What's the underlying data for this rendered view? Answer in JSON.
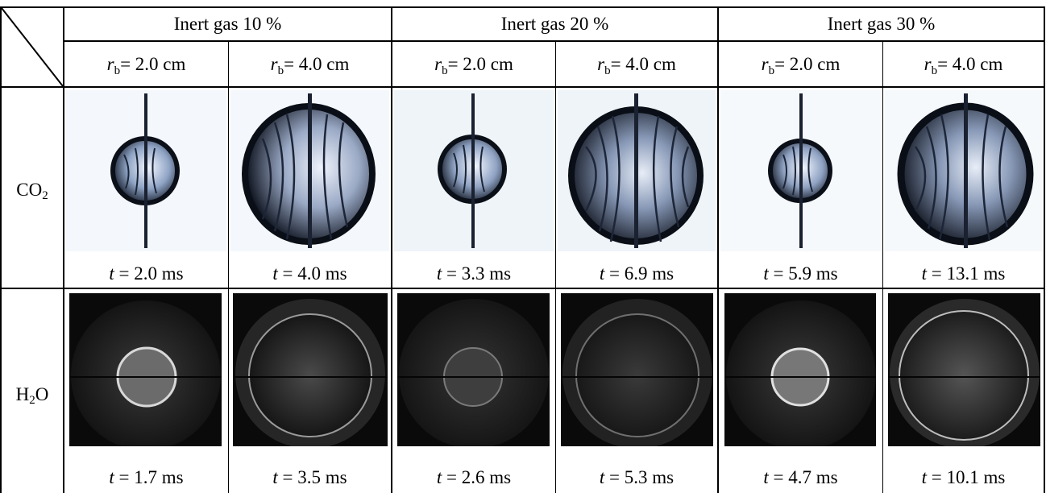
{
  "groups": [
    "Inert gas 10 %",
    "Inert gas 20 %",
    "Inert gas 30 %"
  ],
  "radius": {
    "symbol": "r",
    "subscript": "b",
    "values": [
      "= 2.0 cm",
      "= 4.0 cm",
      "= 2.0 cm",
      "= 4.0 cm",
      "= 2.0 cm",
      "= 4.0 cm"
    ]
  },
  "rows": [
    {
      "label_main": "CO",
      "label_sub": "2",
      "label_tail": "",
      "times": [
        "= 2.0 ms",
        "= 4.0 ms",
        "= 3.3 ms",
        "= 6.9 ms",
        "= 5.9 ms",
        "= 13.1 ms"
      ]
    },
    {
      "label_main": "H",
      "label_sub": "2",
      "label_tail": "O",
      "times": [
        "= 1.7 ms",
        "= 3.5 ms",
        "= 2.6 ms",
        "= 5.3 ms",
        "= 4.7 ms",
        "= 10.1 ms"
      ]
    }
  ],
  "time_symbol": "t",
  "colors": {
    "line": "#000000",
    "co2_bg": "#f3f7fb",
    "h2o_bg": "#0a0a0a"
  }
}
